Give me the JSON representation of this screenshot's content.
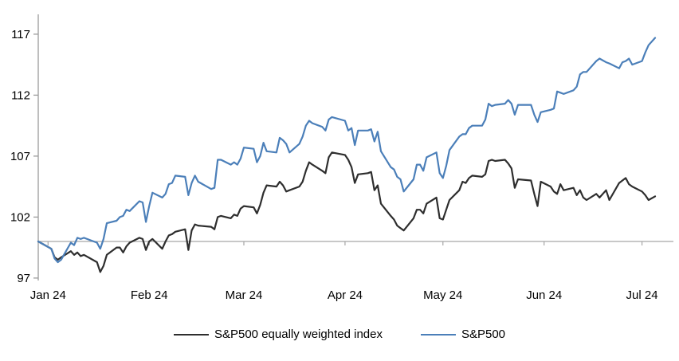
{
  "chart_data": {
    "type": "line",
    "title": "",
    "xlabel": "",
    "ylabel": "",
    "y_ticks": [
      97,
      102,
      107,
      112,
      117
    ],
    "ylim": [
      95.7,
      118.6
    ],
    "baseline_value": 100,
    "grid": "off",
    "legend_position": "bottom-center",
    "x_tick_labels": [
      "Jan 24",
      "Feb 24",
      "Mar 24",
      "Apr 24",
      "May 24",
      "Jun 24",
      "Jul 24"
    ],
    "x_tick_days": [
      3,
      34,
      63,
      94,
      124,
      155,
      185
    ],
    "x_unit": "calendar days since Dec 29 2023",
    "x_days": [
      0,
      4,
      5,
      6,
      7,
      10,
      11,
      12,
      13,
      14,
      18,
      19,
      20,
      21,
      24,
      25,
      26,
      27,
      28,
      31,
      32,
      33,
      34,
      35,
      38,
      39,
      40,
      41,
      42,
      45,
      46,
      47,
      48,
      49,
      53,
      54,
      55,
      56,
      59,
      60,
      61,
      62,
      63,
      66,
      67,
      68,
      69,
      70,
      73,
      74,
      75,
      76,
      77,
      80,
      81,
      82,
      83,
      84,
      87,
      88,
      89,
      90,
      94,
      95,
      96,
      97,
      98,
      101,
      102,
      103,
      104,
      105,
      108,
      109,
      110,
      111,
      112,
      115,
      116,
      117,
      118,
      119,
      122,
      123,
      124,
      125,
      126,
      129,
      130,
      131,
      132,
      133,
      136,
      137,
      138,
      139,
      140,
      143,
      144,
      145,
      146,
      147,
      151,
      152,
      153,
      154,
      157,
      158,
      159,
      160,
      161,
      164,
      165,
      166,
      167,
      168,
      171,
      172,
      174,
      175,
      178,
      179,
      180,
      181,
      182,
      185,
      186,
      187,
      189
    ],
    "series": [
      {
        "name": "S&P500 equally weighted index",
        "color": "#2e2e2e",
        "values": [
          100.0,
          99.4,
          98.7,
          98.5,
          98.7,
          99.2,
          98.9,
          99.1,
          98.8,
          98.9,
          98.3,
          97.5,
          98.0,
          98.9,
          99.5,
          99.5,
          99.1,
          99.6,
          99.9,
          100.3,
          100.2,
          99.3,
          100.0,
          100.2,
          99.4,
          100.0,
          100.5,
          100.6,
          100.8,
          101.0,
          99.3,
          100.9,
          101.4,
          101.3,
          101.2,
          101.0,
          102.0,
          102.1,
          101.9,
          102.2,
          102.1,
          102.7,
          102.9,
          102.8,
          102.3,
          103.0,
          104.0,
          104.6,
          104.5,
          104.9,
          104.6,
          104.1,
          104.2,
          104.5,
          104.9,
          105.8,
          106.5,
          106.3,
          105.8,
          105.6,
          106.9,
          107.3,
          107.1,
          106.7,
          106.1,
          104.8,
          105.5,
          105.6,
          105.7,
          104.2,
          104.6,
          103.1,
          102.1,
          101.8,
          101.3,
          101.1,
          100.9,
          101.9,
          102.6,
          102.6,
          102.3,
          103.1,
          103.6,
          101.9,
          101.8,
          102.6,
          103.4,
          104.2,
          104.9,
          104.8,
          105.2,
          105.4,
          105.3,
          105.5,
          106.6,
          106.7,
          106.6,
          106.7,
          106.4,
          106.0,
          104.4,
          105.1,
          105.0,
          103.9,
          102.9,
          104.9,
          104.5,
          104.1,
          103.9,
          104.7,
          104.2,
          104.4,
          103.8,
          104.2,
          103.6,
          103.4,
          103.9,
          103.6,
          104.2,
          103.4,
          104.8,
          105.0,
          105.2,
          104.7,
          104.5,
          104.1,
          103.8,
          103.4,
          103.7
        ]
      },
      {
        "name": "S&P500",
        "color": "#4b7fb9",
        "values": [
          100.0,
          99.4,
          98.6,
          98.3,
          98.5,
          99.9,
          99.7,
          100.3,
          100.2,
          100.3,
          99.9,
          99.4,
          100.2,
          101.5,
          101.7,
          102.0,
          102.1,
          102.6,
          102.5,
          103.3,
          103.2,
          101.6,
          102.9,
          104.0,
          103.6,
          103.9,
          104.7,
          104.8,
          105.4,
          105.3,
          103.8,
          104.8,
          105.4,
          104.9,
          104.3,
          104.4,
          106.7,
          106.7,
          106.3,
          106.5,
          106.3,
          106.8,
          107.7,
          107.6,
          106.5,
          107.0,
          108.1,
          107.4,
          107.3,
          108.5,
          108.3,
          108.0,
          107.3,
          108.0,
          108.6,
          109.5,
          109.9,
          109.7,
          109.4,
          109.1,
          110.0,
          110.2,
          109.9,
          109.1,
          109.3,
          107.9,
          109.1,
          109.1,
          109.2,
          108.2,
          109.0,
          107.4,
          106.1,
          105.9,
          105.3,
          105.1,
          104.1,
          105.1,
          106.3,
          106.3,
          105.8,
          106.9,
          107.3,
          105.6,
          105.2,
          106.2,
          107.5,
          108.6,
          108.8,
          108.8,
          109.3,
          109.5,
          109.5,
          110.0,
          111.3,
          111.1,
          111.2,
          111.3,
          111.6,
          111.3,
          110.4,
          111.2,
          111.2,
          110.4,
          109.8,
          110.6,
          110.8,
          110.9,
          112.3,
          112.2,
          112.1,
          112.4,
          112.7,
          113.7,
          113.9,
          113.9,
          114.8,
          115.0,
          114.7,
          114.6,
          114.2,
          114.7,
          114.8,
          115.0,
          114.5,
          114.8,
          115.5,
          116.1,
          116.7
        ]
      }
    ],
    "colors": {
      "axis": "#9c9c9c",
      "baseline": "#a6a6a6",
      "text": "#000000",
      "background": "#ffffff"
    }
  }
}
